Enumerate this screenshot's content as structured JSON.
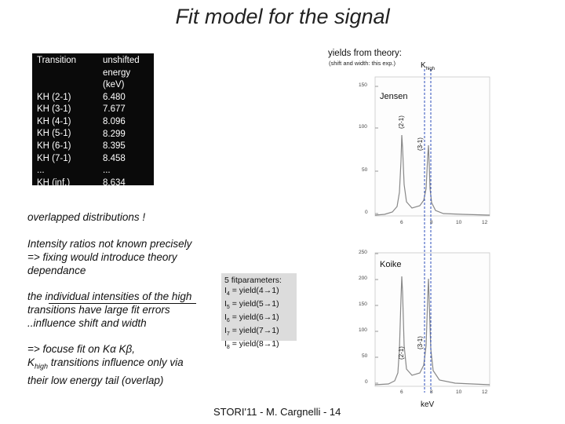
{
  "title": "Fit model for the signal",
  "table": {
    "header_transition": "Transition",
    "header_energy": "unshifted energy (keV)",
    "rows": [
      {
        "transition": "KH (2-1)",
        "energy": "6.480"
      },
      {
        "transition": "KH (3-1)",
        "energy": "7.677"
      },
      {
        "transition": "KH (4-1)",
        "energy": "8.096"
      },
      {
        "transition": "KH (5-1)",
        "energy": "8.299"
      },
      {
        "transition": "KH (6-1)",
        "energy": "8.395"
      },
      {
        "transition": "KH (7-1)",
        "energy": "8.458"
      },
      {
        "transition": "...",
        "energy": "..."
      },
      {
        "transition": "KH (inf.)",
        "energy": "8.634"
      }
    ]
  },
  "text": {
    "overlapped": "overlapped distributions !",
    "intensity_1": "Intensity ratios not known precisely",
    "intensity_2": "=> fixing would introduce theory",
    "intensity_3": "dependance",
    "individual_1": "the individual intensities of the high",
    "individual_2": "transitions have large fit errors",
    "individual_3": "..influence shift and width",
    "focus_1": "=> focuse fit on Kα Kβ,",
    "focus_2": "K",
    "focus_2_sub": "high",
    "focus_2_rest": " transitions influence only via",
    "focus_3": "their low energy tail (overlap)"
  },
  "params": {
    "heading": "5 fitparameters:",
    "lines": [
      {
        "sym": "I",
        "sub": "4",
        "rest": " = yield(4→1)"
      },
      {
        "sym": "I",
        "sub": "5",
        "rest": " = yield(5→1)"
      },
      {
        "sym": "I",
        "sub": "6",
        "rest": " = yield(6→1)"
      },
      {
        "sym": "I",
        "sub": "7",
        "rest": " = yield(7→1)"
      },
      {
        "sym": "I",
        "sub": "8",
        "rest": " = yield(8→1)"
      }
    ]
  },
  "plots": {
    "yields_title": "yields from theory:",
    "yields_sub": "(shift and width: this exp.)",
    "khigh_main": "K",
    "khigh_sub": "high",
    "top_label": "Jensen",
    "bottom_label": "Koike",
    "label_21": "(2-1)",
    "label_31": "(3-1)",
    "xunit": "keV",
    "top_yticks": [
      "150",
      "100",
      "50",
      "0"
    ],
    "bottom_yticks": [
      "250",
      "200",
      "150",
      "100",
      "50",
      "0"
    ],
    "xticks": [
      "6",
      "8",
      "10",
      "12"
    ]
  },
  "footer": "STORI'11 - M. Cargnelli - 14"
}
